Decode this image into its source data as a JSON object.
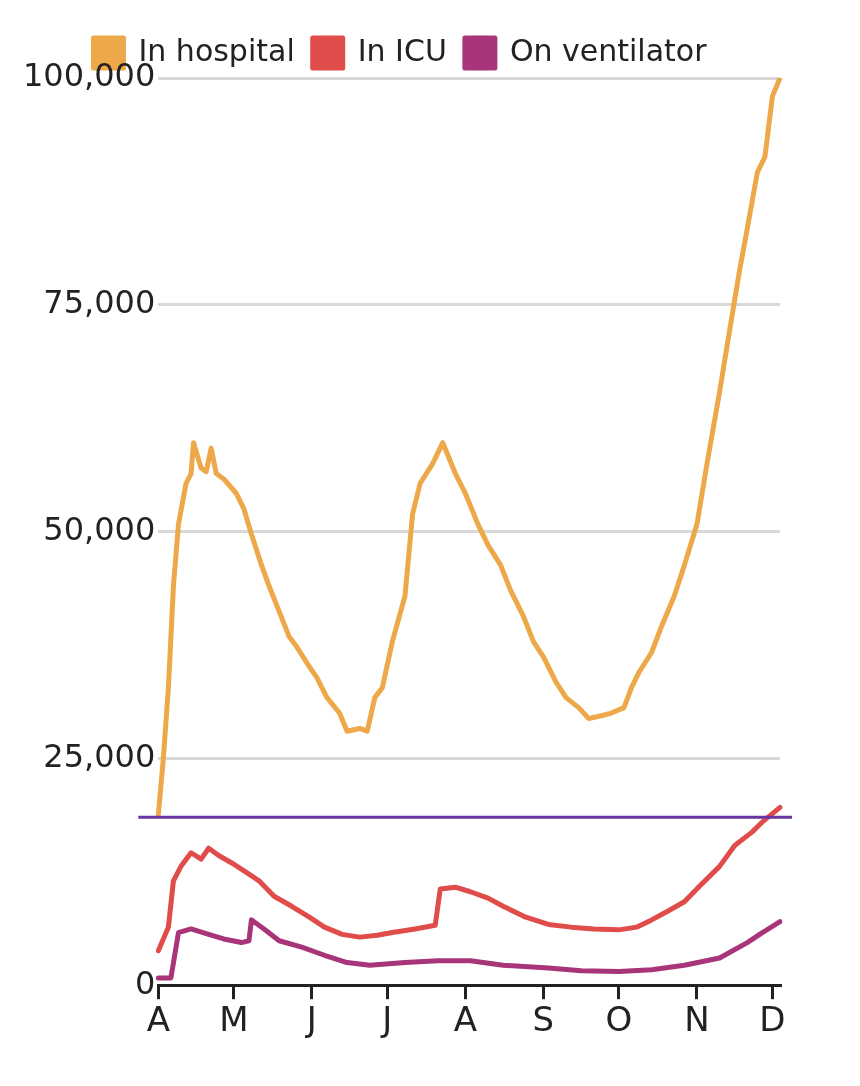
{
  "chart_data": {
    "type": "line",
    "categories": [
      "A",
      null,
      null,
      null,
      null,
      null,
      null,
      null,
      null,
      null,
      null,
      null,
      null,
      null,
      null,
      null,
      null,
      null,
      null,
      null,
      null,
      null,
      null,
      null,
      null,
      null,
      null,
      null,
      null,
      null,
      "M",
      null,
      null,
      null,
      null,
      null,
      null,
      null,
      null,
      null,
      null,
      null,
      null,
      null,
      null,
      null,
      null,
      null,
      null,
      null,
      null,
      null,
      null,
      null,
      null,
      null,
      null,
      null,
      null,
      null,
      null,
      "J",
      null,
      null,
      null,
      null,
      null,
      null,
      null,
      null,
      null,
      null,
      null,
      null,
      null,
      null,
      null,
      null,
      null,
      null,
      null,
      null,
      null,
      null,
      null,
      null,
      null,
      null,
      null,
      null,
      null,
      "J",
      null,
      null,
      null,
      null,
      null,
      null,
      null,
      null,
      null,
      null,
      null,
      null,
      null,
      null,
      null,
      null,
      null,
      null,
      null,
      null,
      null,
      null,
      null,
      null,
      null,
      null,
      null,
      null,
      null,
      null,
      "A",
      null,
      null,
      null,
      null,
      null,
      null,
      null,
      null,
      null,
      null,
      null,
      null,
      null,
      null,
      null,
      null,
      null,
      null,
      null,
      null,
      null,
      null,
      null,
      null,
      null,
      null,
      null,
      null,
      null,
      null,
      "S",
      null,
      null,
      null,
      null,
      null,
      null,
      null,
      null,
      null,
      null,
      null,
      null,
      null,
      null,
      null,
      null,
      null,
      null,
      null,
      null,
      null,
      null,
      null,
      null,
      null,
      null,
      null,
      null,
      null,
      "O",
      null,
      null,
      null,
      null,
      null,
      null,
      null,
      null,
      null,
      null,
      null,
      null,
      null,
      null,
      null,
      null,
      null,
      null,
      null,
      null,
      null,
      null,
      null,
      null,
      null,
      null,
      null,
      null,
      null,
      null,
      "N",
      null,
      null,
      null,
      null,
      null,
      null,
      null,
      null,
      null,
      null,
      null,
      null,
      null,
      null,
      null,
      null,
      null,
      null,
      null,
      null,
      null,
      null,
      null,
      null,
      null,
      null,
      null,
      null,
      null,
      "D",
      null,
      null,
      null
    ],
    "ylim": [
      0,
      100000
    ],
    "yticks": [
      0,
      {
        "value": 25000,
        "label": "25,000"
      },
      {
        "value": 50000,
        "label": "50,000"
      },
      {
        "value": 75000,
        "label": "75,000"
      },
      {
        "value": 100000,
        "label": "100,000"
      }
    ],
    "grid": "y",
    "legend": "top",
    "marker": "none",
    "line_style": "solid",
    "ref_lines": [
      {
        "axis": "y",
        "value": 18500,
        "color": "#6a35a0"
      }
    ],
    "series": [
      {
        "name": "In hospital",
        "color": "#eda84a",
        "values": [
          18800,
          null,
          25000,
          null,
          32800,
          null,
          44000,
          null,
          50800,
          null,
          null,
          55300,
          null,
          56400,
          59800,
          null,
          null,
          57000,
          null,
          56600,
          null,
          59200,
          null,
          56400,
          null,
          null,
          55800,
          null,
          null,
          null,
          null,
          54200,
          null,
          null,
          52500,
          null,
          null,
          49700,
          null,
          null,
          null,
          46300,
          null,
          null,
          44000,
          null,
          null,
          null,
          41200,
          null,
          null,
          null,
          38400,
          null,
          null,
          37300,
          null,
          null,
          null,
          null,
          35100,
          null,
          null,
          33900,
          null,
          null,
          null,
          31700,
          null,
          null,
          null,
          null,
          30000,
          null,
          null,
          28000,
          null,
          null,
          null,
          null,
          28300,
          null,
          null,
          28000,
          null,
          null,
          31700,
          null,
          null,
          32800,
          null,
          null,
          null,
          37900,
          null,
          null,
          null,
          null,
          42900,
          null,
          null,
          51900,
          null,
          null,
          55300,
          null,
          null,
          null,
          null,
          57500,
          null,
          null,
          null,
          59800,
          null,
          null,
          null,
          null,
          56400,
          null,
          null,
          null,
          54200,
          null,
          null,
          null,
          null,
          50800,
          null,
          null,
          null,
          48500,
          null,
          null,
          null,
          null,
          46300,
          null,
          null,
          null,
          43500,
          null,
          null,
          null,
          null,
          40700,
          null,
          null,
          null,
          37900,
          null,
          null,
          null,
          36200,
          null,
          null,
          null,
          null,
          33400,
          null,
          null,
          null,
          31700,
          null,
          null,
          null,
          null,
          30600,
          null,
          null,
          null,
          29400,
          null,
          null,
          null,
          null,
          29700,
          null,
          null,
          null,
          30000,
          null,
          null,
          null,
          null,
          30600,
          null,
          null,
          32800,
          null,
          null,
          34500,
          null,
          null,
          null,
          null,
          36700,
          null,
          null,
          null,
          39600,
          null,
          null,
          null,
          null,
          42900,
          null,
          null,
          null,
          46300,
          null,
          null,
          null,
          null,
          50800,
          null,
          null,
          null,
          57500,
          null,
          null,
          null,
          null,
          65400,
          null,
          null,
          null,
          72200,
          null,
          null,
          null,
          78900,
          null,
          null,
          83400,
          null,
          null,
          null,
          89600,
          null,
          null,
          91300,
          null,
          null,
          98000,
          null,
          null,
          100000
        ]
      },
      {
        "name": "In ICU",
        "color": "#e04c4a",
        "values": [
          3800,
          null,
          null,
          null,
          6400,
          null,
          11500,
          null,
          null,
          13100,
          null,
          null,
          null,
          14600,
          null,
          null,
          null,
          13900,
          null,
          null,
          15100,
          null,
          null,
          null,
          14300,
          null,
          null,
          null,
          null,
          13500,
          null,
          null,
          null,
          12800,
          null,
          null,
          null,
          null,
          null,
          null,
          11500,
          null,
          null,
          null,
          null,
          null,
          9800,
          null,
          null,
          null,
          null,
          null,
          null,
          8700,
          null,
          null,
          null,
          null,
          null,
          null,
          7500,
          null,
          null,
          null,
          null,
          null,
          6400,
          null,
          null,
          null,
          null,
          null,
          null,
          5600,
          null,
          null,
          null,
          null,
          null,
          null,
          5300,
          null,
          null,
          null,
          null,
          null,
          null,
          5500,
          null,
          null,
          null,
          null,
          null,
          5800,
          null,
          null,
          null,
          null,
          null,
          null,
          null,
          null,
          6200,
          null,
          null,
          null,
          null,
          null,
          null,
          null,
          6600,
          null,
          10600,
          null,
          null,
          null,
          null,
          null,
          10800,
          null,
          null,
          null,
          null,
          null,
          10300,
          null,
          null,
          null,
          null,
          null,
          null,
          9600,
          null,
          null,
          null,
          null,
          null,
          8700,
          null,
          null,
          null,
          null,
          null,
          null,
          null,
          null,
          7500,
          null,
          null,
          null,
          null,
          null,
          null,
          null,
          null,
          6700,
          null,
          null,
          null,
          null,
          null,
          null,
          null,
          null,
          6400,
          null,
          null,
          null,
          null,
          null,
          null,
          null,
          null,
          6200,
          null,
          null,
          null,
          null,
          null,
          null,
          null,
          null,
          null,
          6100,
          null,
          null,
          null,
          null,
          null,
          null,
          6400,
          null,
          null,
          null,
          null,
          null,
          7200,
          null,
          null,
          null,
          null,
          null,
          8100,
          null,
          null,
          null,
          null,
          null,
          null,
          9200,
          null,
          null,
          null,
          null,
          null,
          10900,
          null,
          null,
          null,
          null,
          null,
          null,
          null,
          13100,
          null,
          null,
          null,
          null,
          null,
          15400,
          null,
          null,
          null,
          null,
          null,
          null,
          16900,
          null,
          null,
          null,
          18000,
          null,
          null,
          null,
          null,
          null,
          null,
          19600
        ]
      },
      {
        "name": "On ventilator",
        "color": "#a8347a",
        "values": [
          800,
          null,
          null,
          null,
          null,
          800,
          null,
          null,
          5800,
          null,
          null,
          null,
          null,
          6200,
          null,
          null,
          null,
          null,
          null,
          null,
          5600,
          null,
          null,
          null,
          null,
          null,
          5100,
          null,
          null,
          null,
          null,
          null,
          null,
          4700,
          null,
          null,
          4900,
          7200,
          null,
          null,
          null,
          null,
          6200,
          null,
          null,
          null,
          null,
          null,
          4900,
          null,
          null,
          null,
          null,
          null,
          null,
          null,
          null,
          4200,
          null,
          null,
          null,
          null,
          null,
          null,
          null,
          null,
          3300,
          null,
          null,
          null,
          null,
          null,
          null,
          null,
          null,
          2500,
          null,
          null,
          null,
          null,
          null,
          null,
          null,
          null,
          2200,
          null,
          null,
          null,
          null,
          null,
          null,
          null,
          null,
          null,
          null,
          null,
          null,
          null,
          2500,
          null,
          null,
          null,
          null,
          null,
          null,
          null,
          null,
          null,
          null,
          null,
          null,
          2700,
          null,
          null,
          null,
          null,
          null,
          null,
          null,
          null,
          null,
          null,
          null,
          null,
          2700,
          null,
          null,
          null,
          null,
          null,
          null,
          null,
          null,
          null,
          null,
          null,
          null,
          2200,
          null,
          null,
          null,
          null,
          null,
          null,
          null,
          null,
          null,
          null,
          null,
          null,
          null,
          null,
          null,
          null,
          null,
          1900,
          null,
          null,
          null,
          null,
          null,
          null,
          null,
          null,
          null,
          null,
          null,
          null,
          1600,
          null,
          null,
          null,
          null,
          null,
          null,
          null,
          null,
          null,
          null,
          null,
          null,
          null,
          null,
          1500,
          null,
          null,
          null,
          null,
          null,
          null,
          null,
          null,
          null,
          null,
          null,
          null,
          1700,
          null,
          null,
          null,
          null,
          null,
          null,
          null,
          null,
          null,
          null,
          null,
          null,
          2200,
          null,
          null,
          null,
          null,
          null,
          null,
          null,
          null,
          null,
          null,
          null,
          null,
          null,
          3000,
          null,
          null,
          null,
          null,
          null,
          null,
          null,
          null,
          null,
          null,
          4700,
          null,
          null,
          null,
          null,
          null,
          5800,
          null,
          null,
          null,
          null,
          null,
          null,
          7000
        ]
      }
    ]
  }
}
